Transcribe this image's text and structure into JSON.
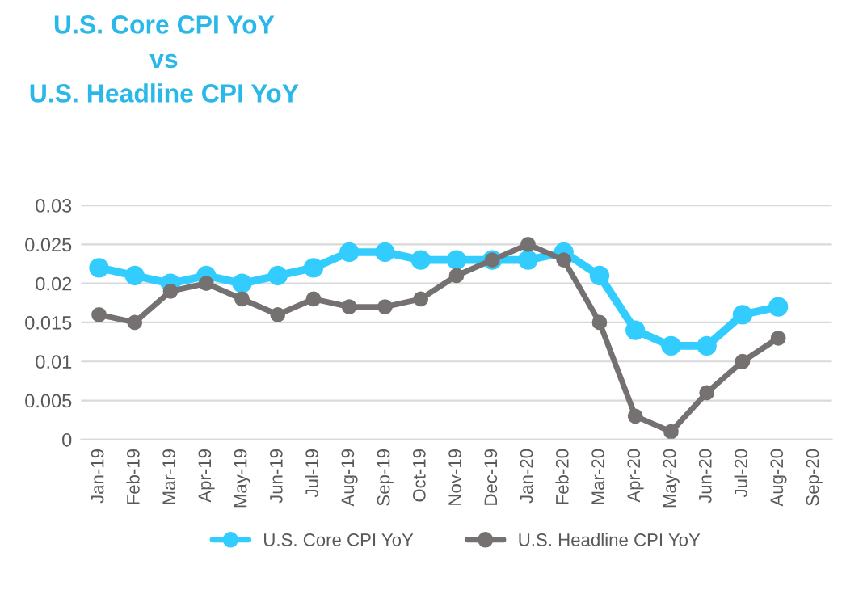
{
  "chart_data": {
    "type": "line",
    "title": "U.S. Core CPI YoY\nvs\nU.S. Headline CPI YoY",
    "categories": [
      "Jan-19",
      "Feb-19",
      "Mar-19",
      "Apr-19",
      "May-19",
      "Jun-19",
      "Jul-19",
      "Aug-19",
      "Sep-19",
      "Oct-19",
      "Nov-19",
      "Dec-19",
      "Jan-20",
      "Feb-20",
      "Mar-20",
      "Apr-20",
      "May-20",
      "Jun-20",
      "Jul-20",
      "Aug-20",
      "Sep-20"
    ],
    "series": [
      {
        "name": "U.S. Core CPI YoY",
        "color": "#33ccff",
        "values": [
          0.022,
          0.021,
          0.02,
          0.021,
          0.02,
          0.021,
          0.022,
          0.024,
          0.024,
          0.023,
          0.023,
          0.023,
          0.023,
          0.024,
          0.021,
          0.014,
          0.012,
          0.012,
          0.016,
          0.017,
          null
        ]
      },
      {
        "name": "U.S. Headline CPI YoY",
        "color": "#767171",
        "values": [
          0.016,
          0.015,
          0.019,
          0.02,
          0.018,
          0.016,
          0.018,
          0.017,
          0.017,
          0.018,
          0.021,
          0.023,
          0.025,
          0.023,
          0.015,
          0.003,
          0.001,
          0.006,
          0.01,
          0.013,
          null
        ]
      }
    ],
    "ylim": [
      0,
      0.03
    ],
    "yticks": [
      0,
      0.005,
      0.01,
      0.015,
      0.02,
      0.025,
      0.03
    ],
    "grid": "y",
    "legend": "bottom",
    "marker": "circle",
    "line_style": "solid"
  }
}
